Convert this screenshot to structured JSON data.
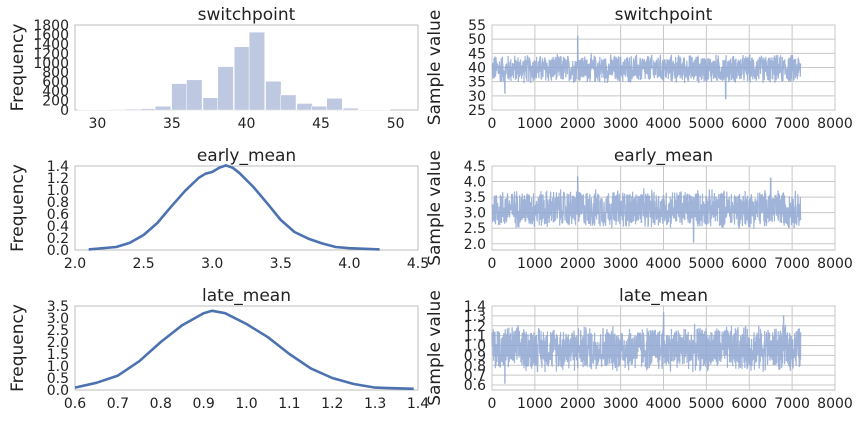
{
  "colors": {
    "bar": "#7d92c4",
    "kde": "#4c72b0",
    "trace": "#8fa6d1"
  },
  "chart_data": [
    {
      "id": "hist-switchpoint",
      "type": "bar",
      "title": "switchpoint",
      "ylabel": "Frequency",
      "xlim": [
        28.5,
        51.5
      ],
      "ylim": [
        0,
        1800
      ],
      "xticks": [
        30,
        35,
        40,
        45,
        50
      ],
      "yticks": [
        0,
        200,
        400,
        600,
        800,
        1000,
        1200,
        1400,
        1600,
        1800
      ],
      "bin_width": 1.05,
      "bins": [
        {
          "x": 29.2,
          "value": 5
        },
        {
          "x": 30.2,
          "value": 5
        },
        {
          "x": 31.3,
          "value": 15
        },
        {
          "x": 32.3,
          "value": 20
        },
        {
          "x": 33.4,
          "value": 30
        },
        {
          "x": 34.4,
          "value": 80
        },
        {
          "x": 35.5,
          "value": 560
        },
        {
          "x": 36.5,
          "value": 640
        },
        {
          "x": 37.6,
          "value": 260
        },
        {
          "x": 38.6,
          "value": 920
        },
        {
          "x": 39.7,
          "value": 1340
        },
        {
          "x": 40.7,
          "value": 1650
        },
        {
          "x": 41.8,
          "value": 610
        },
        {
          "x": 42.8,
          "value": 320
        },
        {
          "x": 43.9,
          "value": 140
        },
        {
          "x": 44.9,
          "value": 80
        },
        {
          "x": 45.9,
          "value": 250
        },
        {
          "x": 47.0,
          "value": 40
        },
        {
          "x": 48.0,
          "value": 10
        },
        {
          "x": 49.1,
          "value": 5
        }
      ]
    },
    {
      "id": "trace-switchpoint",
      "type": "line",
      "title": "switchpoint",
      "ylabel": "Sample value",
      "xlim": [
        0,
        8000
      ],
      "ylim": [
        25,
        55
      ],
      "xticks": [
        0,
        1000,
        2000,
        3000,
        4000,
        5000,
        6000,
        7000,
        8000
      ],
      "yticks": [
        25,
        30,
        35,
        40,
        45,
        50,
        55
      ],
      "n_samples": 7200,
      "typical_range": [
        34,
        45
      ],
      "extremes": [
        {
          "x": 2000,
          "value": 51
        },
        {
          "x": 5450,
          "value": 29
        },
        {
          "x": 300,
          "value": 31
        }
      ]
    },
    {
      "id": "kde-early",
      "type": "line",
      "title": "early_mean",
      "ylabel": "Frequency",
      "xlim": [
        2.0,
        4.5
      ],
      "ylim": [
        0,
        1.4
      ],
      "xticks": [
        2.0,
        2.5,
        3.0,
        3.5,
        4.0,
        4.5
      ],
      "yticks": [
        0.0,
        0.2,
        0.4,
        0.6,
        0.8,
        1.0,
        1.2,
        1.4
      ],
      "x": [
        2.1,
        2.3,
        2.4,
        2.5,
        2.6,
        2.7,
        2.8,
        2.9,
        2.95,
        3.0,
        3.05,
        3.1,
        3.15,
        3.2,
        3.3,
        3.4,
        3.5,
        3.6,
        3.7,
        3.8,
        3.9,
        4.0,
        4.22
      ],
      "values": [
        0.01,
        0.05,
        0.12,
        0.25,
        0.45,
        0.72,
        0.98,
        1.2,
        1.27,
        1.3,
        1.37,
        1.41,
        1.37,
        1.28,
        1.05,
        0.78,
        0.5,
        0.3,
        0.19,
        0.11,
        0.05,
        0.03,
        0.01
      ]
    },
    {
      "id": "trace-early",
      "type": "line",
      "title": "early_mean",
      "ylabel": "Sample value",
      "xlim": [
        0,
        8000
      ],
      "ylim": [
        1.8,
        4.5
      ],
      "xticks": [
        0,
        1000,
        2000,
        3000,
        4000,
        5000,
        6000,
        7000,
        8000
      ],
      "yticks": [
        2.0,
        2.5,
        3.0,
        3.5,
        4.0,
        4.5
      ],
      "n_samples": 7200,
      "typical_range": [
        2.45,
        3.8
      ],
      "extremes": [
        {
          "x": 2000,
          "value": 4.15
        },
        {
          "x": 4700,
          "value": 2.05
        },
        {
          "x": 6500,
          "value": 4.1
        }
      ]
    },
    {
      "id": "kde-late",
      "type": "line",
      "title": "late_mean",
      "ylabel": "Frequency",
      "xlim": [
        0.6,
        1.4
      ],
      "ylim": [
        0,
        3.5
      ],
      "xticks": [
        0.6,
        0.7,
        0.8,
        0.9,
        1.0,
        1.1,
        1.2,
        1.3,
        1.4
      ],
      "yticks": [
        0.0,
        0.5,
        1.0,
        1.5,
        2.0,
        2.5,
        3.0,
        3.5
      ],
      "x": [
        0.6,
        0.65,
        0.7,
        0.75,
        0.8,
        0.85,
        0.9,
        0.92,
        0.95,
        1.0,
        1.05,
        1.1,
        1.15,
        1.2,
        1.25,
        1.3,
        1.39
      ],
      "values": [
        0.1,
        0.3,
        0.6,
        1.2,
        2.0,
        2.7,
        3.2,
        3.3,
        3.2,
        2.75,
        2.2,
        1.5,
        0.9,
        0.5,
        0.25,
        0.1,
        0.05
      ]
    },
    {
      "id": "trace-late",
      "type": "line",
      "title": "late_mean",
      "ylabel": "Sample value",
      "xlim": [
        0,
        8000
      ],
      "ylim": [
        0.55,
        1.4
      ],
      "xticks": [
        0,
        1000,
        2000,
        3000,
        4000,
        5000,
        6000,
        7000,
        8000
      ],
      "yticks": [
        0.6,
        0.7,
        0.8,
        0.9,
        1.0,
        1.1,
        1.2,
        1.3,
        1.4
      ],
      "n_samples": 7200,
      "typical_range": [
        0.72,
        1.22
      ],
      "extremes": [
        {
          "x": 4000,
          "value": 1.33
        },
        {
          "x": 300,
          "value": 0.62
        },
        {
          "x": 6800,
          "value": 1.3
        }
      ]
    }
  ]
}
